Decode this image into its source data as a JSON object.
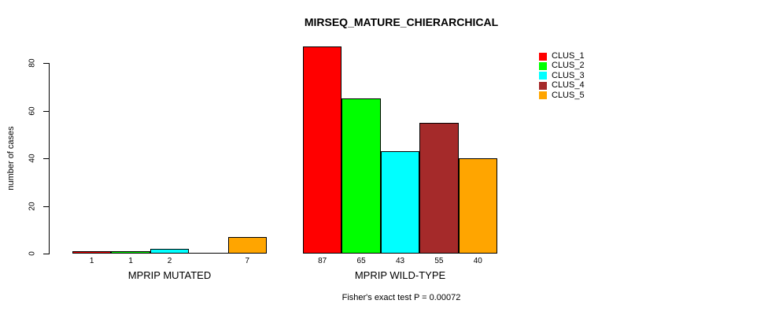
{
  "title": "MIRSEQ_MATURE_CHIERARCHICAL",
  "ylabel": "number of cases",
  "footnote": "Fisher's exact test P = 0.00072",
  "chart_data": {
    "type": "bar",
    "title": "MIRSEQ_MATURE_CHIERARCHICAL",
    "xlabel": "",
    "ylabel": "number of cases",
    "ylim": [
      0,
      80
    ],
    "yticks": [
      0,
      20,
      40,
      60,
      80
    ],
    "grid": false,
    "legend_position": "right",
    "series_labels": [
      "CLUS_1",
      "CLUS_2",
      "CLUS_3",
      "CLUS_4",
      "CLUS_5"
    ],
    "colors": [
      "#FF0000",
      "#00FF00",
      "#00FFFF",
      "#A52A2A",
      "#FFA500"
    ],
    "groups": [
      {
        "label": "MPRIP MUTATED",
        "values": [
          1,
          1,
          2,
          0,
          7
        ],
        "bar_labels": [
          "1",
          "1",
          "2",
          "",
          "7"
        ]
      },
      {
        "label": "MPRIP WILD-TYPE",
        "values": [
          87,
          65,
          43,
          55,
          40
        ],
        "bar_labels": [
          "87",
          "65",
          "43",
          "55",
          "40"
        ]
      }
    ],
    "annotation": "Fisher's exact test P = 0.00072"
  },
  "legend": {
    "entries": [
      {
        "label": "CLUS_1",
        "color": "#FF0000"
      },
      {
        "label": "CLUS_2",
        "color": "#00FF00"
      },
      {
        "label": "CLUS_3",
        "color": "#00FFFF"
      },
      {
        "label": "CLUS_4",
        "color": "#A52A2A"
      },
      {
        "label": "CLUS_5",
        "color": "#FFA500"
      }
    ]
  }
}
